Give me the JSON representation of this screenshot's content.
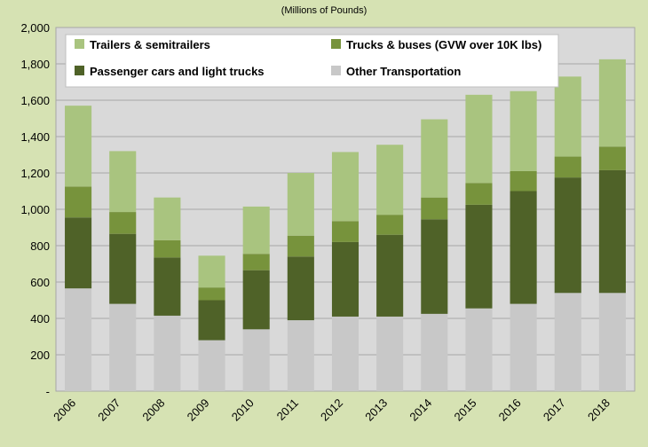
{
  "chart_data": {
    "type": "bar",
    "stacked": true,
    "subtitle": "(Millions of Pounds)",
    "categories": [
      "2006",
      "2007",
      "2008",
      "2009",
      "2010",
      "2011",
      "2012",
      "2013",
      "2014",
      "2015",
      "2016",
      "2017",
      "2018"
    ],
    "ylim": [
      0,
      2000
    ],
    "yticks": [
      0,
      200,
      400,
      600,
      800,
      1000,
      1200,
      1400,
      1600,
      1800,
      2000
    ],
    "ytick_labels": [
      "-",
      "200",
      "400",
      "600",
      "800",
      "1,000",
      "1,200",
      "1,400",
      "1,600",
      "1,800",
      "2,000"
    ],
    "grid": true,
    "legend_position": "top",
    "series": [
      {
        "name": "Other Transportation",
        "color": "#c8c8c8",
        "values": [
          565,
          480,
          415,
          280,
          340,
          390,
          410,
          410,
          425,
          455,
          480,
          540,
          540
        ]
      },
      {
        "name": "Passenger cars and light trucks",
        "color": "#4f6228",
        "values": [
          390,
          385,
          320,
          220,
          325,
          350,
          410,
          450,
          520,
          570,
          620,
          635,
          675
        ]
      },
      {
        "name": "Trucks & buses (GVW over 10K lbs)",
        "color": "#77933c",
        "values": [
          170,
          120,
          95,
          70,
          90,
          115,
          115,
          110,
          120,
          120,
          110,
          115,
          130
        ]
      },
      {
        "name": "Trailers & semitrailers",
        "color": "#a9c47f",
        "values": [
          445,
          335,
          235,
          175,
          260,
          345,
          380,
          385,
          430,
          485,
          440,
          440,
          480
        ]
      }
    ],
    "legend_order": [
      3,
      2,
      1,
      0
    ]
  }
}
